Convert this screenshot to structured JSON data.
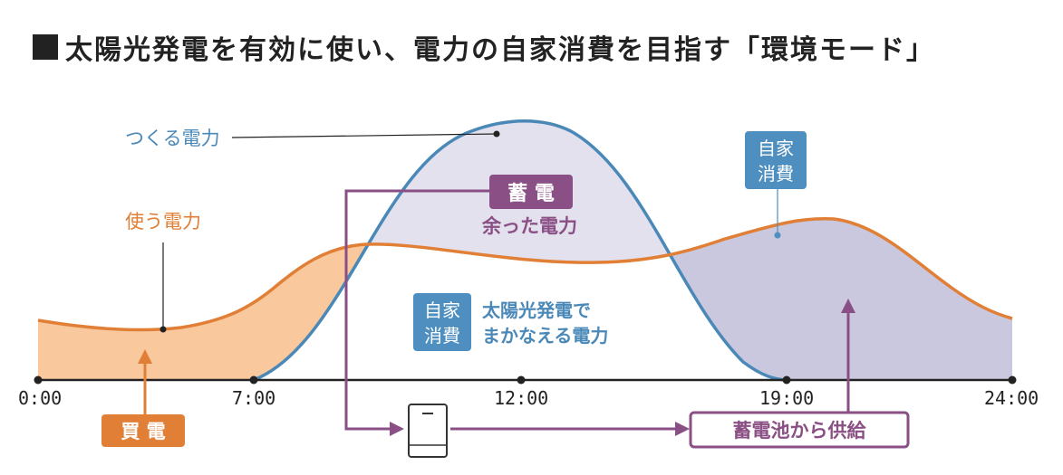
{
  "title": "太陽光発電を有効に使い、電力の自家消費を目指す「環境モード」",
  "labels": {
    "produce": "つくる電力",
    "use": "使う電力",
    "self_consume_line1": "自家",
    "self_consume_line2": "消費",
    "charge_badge": "蓄 電",
    "surplus": "余った電力",
    "solar_covered_line1": "太陽光発電で",
    "solar_covered_line2": "まかなえる電力",
    "buy_badge": "買 電",
    "supply_from_battery": "蓄電池から供給"
  },
  "axis": {
    "ticks": [
      "0:00",
      "7:00",
      "12:00",
      "19:00",
      "24:00"
    ]
  },
  "colors": {
    "produce_line": "#4a88b8",
    "use_line": "#e07f35",
    "buy_fill": "#f9c99d",
    "surplus_fill": "#e3e1ee",
    "battery_fill": "#c9c8df",
    "purple": "#8a4f84",
    "blue_badge": "#4f8fc0",
    "orange_badge": "#e07f35",
    "text_dark": "#222222"
  },
  "icons": {
    "battery_unit": "home-battery-icon",
    "arrow": "arrow-icon"
  }
}
